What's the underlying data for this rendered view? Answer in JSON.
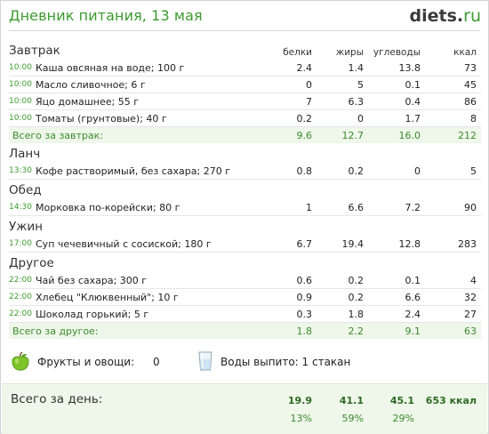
{
  "header": {
    "title": "Дневник питания, 13 мая",
    "logo_main": "diets",
    "logo_dot": ".",
    "logo_tld": "ru"
  },
  "columns": {
    "protein": "белки",
    "fat": "жиры",
    "carbs": "углеводы",
    "kcal": "ккал"
  },
  "meals": [
    {
      "name": "Завтрак",
      "items": [
        {
          "time": "10:00",
          "name": "Каша овсяная на воде; 100 г",
          "protein": "2.4",
          "fat": "1.4",
          "carbs": "13.8",
          "kcal": "73"
        },
        {
          "time": "10:00",
          "name": "Масло сливочное; 6 г",
          "protein": "0",
          "fat": "5",
          "carbs": "0.1",
          "kcal": "45"
        },
        {
          "time": "10:00",
          "name": "Яцо домашнее; 55 г",
          "protein": "7",
          "fat": "6.3",
          "carbs": "0.4",
          "kcal": "86"
        },
        {
          "time": "10:00",
          "name": "Томаты (грунтовые); 40 г",
          "protein": "0.2",
          "fat": "0",
          "carbs": "1.7",
          "kcal": "8"
        }
      ],
      "total": {
        "label": "Всего за завтрак:",
        "protein": "9.6",
        "fat": "12.7",
        "carbs": "16.0",
        "kcal": "212"
      }
    },
    {
      "name": "Ланч",
      "items": [
        {
          "time": "13:30",
          "name": "Кофе растворимый, без сахара; 270 г",
          "protein": "0.8",
          "fat": "0.2",
          "carbs": "0",
          "kcal": "5"
        }
      ]
    },
    {
      "name": "Обед",
      "items": [
        {
          "time": "14:30",
          "name": "Морковка по-корейски; 80 г",
          "protein": "1",
          "fat": "6.6",
          "carbs": "7.2",
          "kcal": "90"
        }
      ]
    },
    {
      "name": "Ужин",
      "items": [
        {
          "time": "17:00",
          "name": "Суп чечевичный с сосиской; 180 г",
          "protein": "6.7",
          "fat": "19.4",
          "carbs": "12.8",
          "kcal": "283"
        }
      ]
    },
    {
      "name": "Другое",
      "items": [
        {
          "time": "22:00",
          "name": "Чай без сахара; 300 г",
          "protein": "0.6",
          "fat": "0.2",
          "carbs": "0.1",
          "kcal": "4"
        },
        {
          "time": "22:00",
          "name": "Хлебец \"Клюквенный\"; 10 г",
          "protein": "0.9",
          "fat": "0.2",
          "carbs": "6.6",
          "kcal": "32"
        },
        {
          "time": "22:00",
          "name": "Шоколад горький; 5 г",
          "protein": "0.3",
          "fat": "1.8",
          "carbs": "2.4",
          "kcal": "27"
        }
      ],
      "total": {
        "label": "Всего за другое:",
        "protein": "1.8",
        "fat": "2.2",
        "carbs": "9.1",
        "kcal": "63"
      }
    }
  ],
  "extras": {
    "fruit_icon": "apple-icon",
    "fruit_label": "Фрукты и овощи:",
    "fruit_value": "0",
    "water_icon": "glass-icon",
    "water_label": "Воды выпито: 1 стакан"
  },
  "day_total": {
    "label": "Всего за день:",
    "protein": "19.9",
    "fat": "41.1",
    "carbs": "45.1",
    "kcal": "653 ккал",
    "protein_pct": "13%",
    "fat_pct": "59%",
    "carbs_pct": "29%"
  },
  "colors": {
    "accent": "#3d9a2f",
    "total_bg": "#eef7ea",
    "total_text": "#3d8a2f"
  }
}
